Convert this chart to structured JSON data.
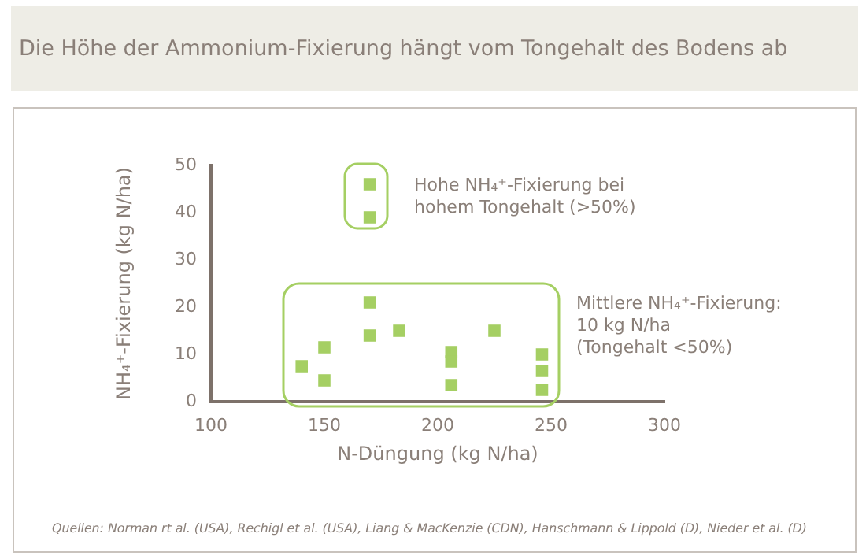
{
  "chart_data": {
    "type": "scatter",
    "title": "Die Höhe der Ammonium-Fixierung hängt vom Tongehalt des Bodens ab",
    "xlabel": "N-Düngung (kg N/ha)",
    "ylabel": "NH₄⁺-Fixierung (kg N/ha)",
    "x": [
      170,
      170,
      170,
      170,
      183,
      140,
      150,
      150,
      206,
      206,
      206,
      225,
      246,
      246,
      246
    ],
    "series": [
      {
        "color": "#a5cf63",
        "values": [
          46,
          39,
          21,
          14,
          15,
          7.5,
          11.5,
          4.5,
          10.5,
          8.5,
          3.5,
          15,
          10,
          6.5,
          2.5
        ]
      }
    ],
    "xlim": [
      100,
      300
    ],
    "xticks": [
      100,
      150,
      200,
      250,
      300
    ],
    "ylim": [
      0,
      50
    ],
    "yticks": [
      0,
      10,
      20,
      30,
      40,
      50
    ],
    "marker": "square",
    "grid": false,
    "legend": false,
    "annotations": [
      "Hohe NH₄⁺-Fixierung bei\nhohem Tongehalt (>50%)",
      "Mittlere NH₄⁺-Fixierung:\n10 kg N/ha\n(Tongehalt <50%)",
      "Quellen: Norman rt al. (USA), Rechigl et al. (USA), Liang & MacKenzie (CDN), Hanschmann & Lippold (D), Nieder et al. (D)"
    ]
  }
}
